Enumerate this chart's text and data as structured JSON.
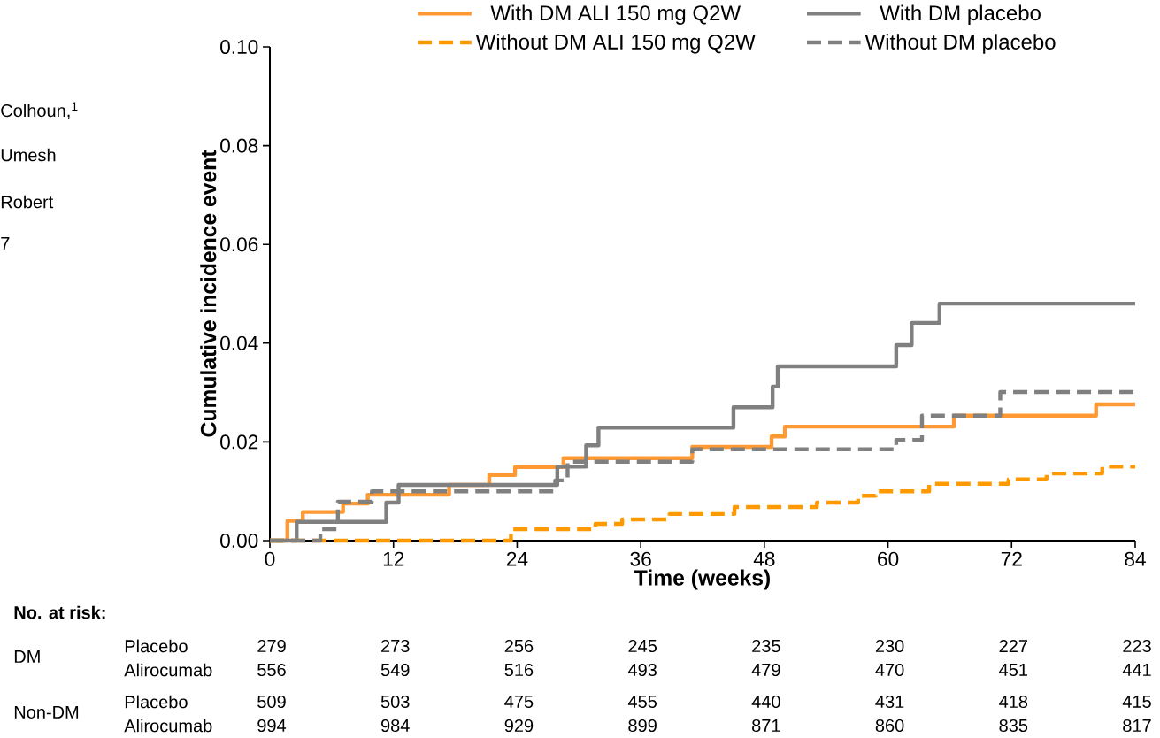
{
  "chart_data": {
    "type": "step",
    "xlabel": "Time (weeks)",
    "ylabel": "Cumulative incidence event",
    "xlim": [
      0,
      84
    ],
    "xticks": [
      0,
      12,
      24,
      36,
      48,
      60,
      72,
      84
    ],
    "ylim": [
      0,
      0.1
    ],
    "yticks": [
      {
        "value": 0,
        "label": "0.00"
      },
      {
        "value": 0.02,
        "label": "0.02"
      },
      {
        "value": 0.04,
        "label": "0.04"
      },
      {
        "value": 0.06,
        "label": "0.06"
      },
      {
        "value": 0.08,
        "label": "0.08"
      },
      {
        "value": 0.1,
        "label": "0.10"
      }
    ],
    "grid": false,
    "legend": "top",
    "series": [
      {
        "name": "With DM ALI 150 mg Q2W",
        "color": "#ff9933",
        "line_style": "solid",
        "x": [
          0,
          1.7,
          3.2,
          7.1,
          9.5,
          17.4,
          21.3,
          23.8,
          28.5,
          41,
          48.7,
          50,
          66.4,
          80.2,
          84
        ],
        "values": [
          0,
          0.004,
          0.0058,
          0.0075,
          0.0093,
          0.0113,
          0.0133,
          0.0149,
          0.0167,
          0.019,
          0.0211,
          0.0231,
          0.0253,
          0.0276,
          0.0276
        ]
      },
      {
        "name": "With DM placebo",
        "color": "#808080",
        "line_style": "solid",
        "x": [
          0,
          2.6,
          11.3,
          12.5,
          27.9,
          30.7,
          31.9,
          45,
          48.8,
          49.3,
          60.8,
          62.3,
          65,
          84
        ],
        "values": [
          0,
          0.0038,
          0.0077,
          0.0113,
          0.015,
          0.0193,
          0.0229,
          0.027,
          0.0312,
          0.0353,
          0.0396,
          0.0441,
          0.048,
          0.048
        ]
      },
      {
        "name": "Without DM ALI 150 mg Q2W",
        "color": "#ff9900",
        "line_style": "dashed",
        "x": [
          0,
          23.4,
          31.6,
          34.2,
          38.8,
          45.1,
          53.1,
          57.1,
          58.8,
          64,
          71.7,
          75.4,
          80.8,
          84
        ],
        "values": [
          0,
          0.0023,
          0.0034,
          0.0043,
          0.0054,
          0.0068,
          0.0077,
          0.0091,
          0.01,
          0.0115,
          0.0124,
          0.0136,
          0.015,
          0.015
        ]
      },
      {
        "name": "Without DM placebo",
        "color": "#808080",
        "line_style": "dashed",
        "x": [
          0,
          4.9,
          6.6,
          9.9,
          27.7,
          28.9,
          41,
          60.8,
          63.3,
          70.9,
          84
        ],
        "values": [
          0,
          0.0023,
          0.0079,
          0.01,
          0.0122,
          0.016,
          0.0185,
          0.0204,
          0.0253,
          0.0301,
          0.0301
        ]
      }
    ],
    "annotations": [
      "Colhoun,$^{1}$",
      "Umesh",
      "Robert",
      "7",
      "No. at risk:",
      "DM",
      "Non-DM",
      "Placebo",
      "Alirocumab",
      "Placebo",
      "Alirocumab",
      "279",
      "273",
      "256",
      "245",
      "235",
      "230",
      "227",
      "223",
      "556",
      "549",
      "516",
      "493",
      "479",
      "470",
      "451",
      "441",
      "509",
      "503",
      "475",
      "455",
      "440",
      "431",
      "418",
      "415",
      "994",
      "984",
      "929",
      "899",
      "871",
      "860",
      "835",
      "817"
    ]
  }
}
